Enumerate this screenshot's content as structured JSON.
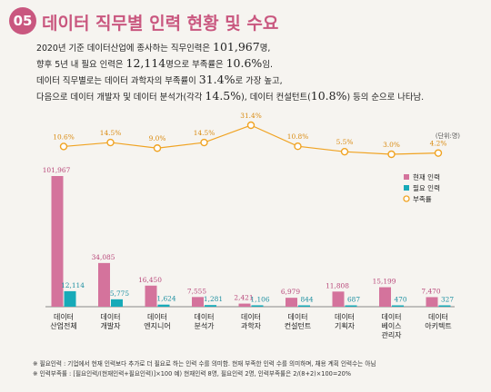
{
  "header": {
    "number": "05",
    "title": "데이터 직무별 인력 현황 및 수요"
  },
  "summary": {
    "line1_pre": "2020년 기준 데이터산업에 종사하는 직무인력은 ",
    "line1_val": "101,967",
    "line1_post": "명,",
    "line2_pre": "향후 5년 내 필요 인력은 ",
    "line2_val": "12,114",
    "line2_mid": "명으로 부족률은 ",
    "line2_val2": "10.6%",
    "line2_post": "임.",
    "line3_pre": "데이터 직무별로는 데이터 과학자의 부족률이 ",
    "line3_val": "31.4%",
    "line3_post": "로 가장 높고,",
    "line4_pre": "다음으로 데이터 개발자 및 데이터 분석가(각각 ",
    "line4_val": "14.5%",
    "line4_mid": "), 데이터 컨설턴트(",
    "line4_val2": "10.8%",
    "line4_post": ") 등의 순으로 나타남."
  },
  "chart_data": {
    "type": "bar",
    "unit_label": "(단위:명)",
    "categories": [
      [
        "데이터",
        "산업전체"
      ],
      [
        "데이터",
        "개발자"
      ],
      [
        "데이터",
        "엔지니어"
      ],
      [
        "데이터",
        "분석가"
      ],
      [
        "데이터",
        "과학자"
      ],
      [
        "데이터",
        "컨설턴트"
      ],
      [
        "데이터",
        "기획자"
      ],
      [
        "데이터",
        "베이스",
        "관리자"
      ],
      [
        "데이터",
        "아키텍트"
      ]
    ],
    "series": [
      {
        "name": "현재 인력",
        "color": "#d4739c",
        "values": [
          101967,
          34085,
          16450,
          7555,
          2421,
          6979,
          11808,
          15199,
          7470
        ],
        "labels": [
          "101,967",
          "34,085",
          "16,450",
          "7,555",
          "2,421",
          "6,979",
          "11,808",
          "15,199",
          "7,470"
        ]
      },
      {
        "name": "필요 인력",
        "color": "#17aab8",
        "values": [
          12114,
          5775,
          1624,
          1281,
          1106,
          844,
          687,
          470,
          327
        ],
        "labels": [
          "12,114",
          "5,775",
          "1,624",
          "1,281",
          "1,106",
          "844",
          "687",
          "470",
          "327"
        ]
      }
    ],
    "line_series": {
      "name": "부족률",
      "color": "#f0a322",
      "values": [
        10.6,
        14.5,
        9.0,
        14.5,
        31.4,
        10.8,
        5.5,
        3.0,
        4.2
      ],
      "labels": [
        "10.6%",
        "14.5%",
        "9.0%",
        "14.5%",
        "31.4%",
        "10.8%",
        "5.5%",
        "3.0%",
        "4.2%"
      ]
    },
    "legend_position": "right",
    "grid": false
  },
  "footnotes": {
    "note1": "필요인력 : 기업에서 현재 인력보다 추가로 더 필요로 하는 인력 수를 의미함. 현재 부족한 인력 수를 의미하며, 채용 계획 인력수는 아님",
    "note2": "인력부족률 : [필요인력/(현재인력+필요인력)]×100    예) 현재인력 8명, 필요인력 2명, 인력부족률은 2/(8+2)×100=20%"
  }
}
